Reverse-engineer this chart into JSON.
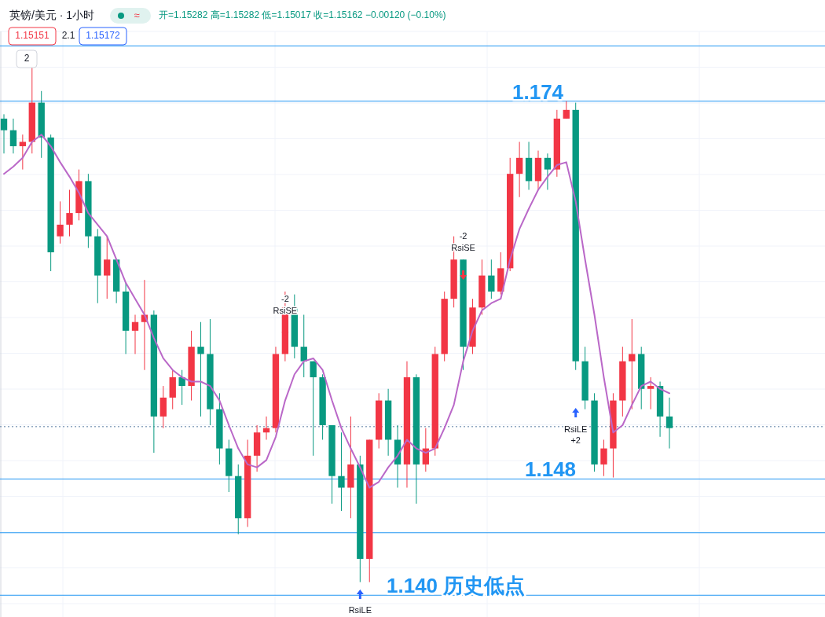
{
  "chart_data": {
    "type": "candlestick",
    "title": "英镑/美元 · 1小时",
    "subtitle": "开=1.15282 高=1.15282 低=1.15017 收=1.15162 −0.00120 (−0.10%)",
    "categories": [
      null,
      null,
      null,
      null,
      null,
      null,
      null,
      null,
      null,
      null,
      null,
      null,
      null,
      null,
      null,
      null,
      null,
      null,
      null,
      null,
      null,
      null,
      null,
      null,
      null,
      null,
      null,
      null,
      null,
      null,
      null,
      null,
      null,
      null,
      null,
      null,
      null,
      null,
      null,
      null,
      null,
      null,
      null,
      null,
      null,
      null,
      null,
      null,
      null,
      null,
      null,
      null,
      null,
      null,
      null,
      null,
      null,
      null,
      null,
      null,
      null,
      null,
      null,
      null,
      null,
      null,
      null,
      null,
      null,
      null,
      null,
      null
    ],
    "ohlc": [
      [
        1.1728,
        1.1731,
        1.1704,
        1.172
      ],
      [
        1.172,
        1.1728,
        1.1704,
        1.1709
      ],
      [
        1.1709,
        1.1717,
        1.1693,
        1.1712
      ],
      [
        1.1712,
        1.1763,
        1.1704,
        1.1739
      ],
      [
        1.1739,
        1.1747,
        1.1701,
        1.1715
      ],
      [
        1.1715,
        1.1717,
        1.1623,
        1.1636
      ],
      [
        1.1647,
        1.1671,
        1.1642,
        1.1655
      ],
      [
        1.1655,
        1.1679,
        1.1647,
        1.1663
      ],
      [
        1.1663,
        1.1693,
        1.1658,
        1.1685
      ],
      [
        1.1685,
        1.169,
        1.1639,
        1.1647
      ],
      [
        1.1647,
        1.1652,
        1.1601,
        1.162
      ],
      [
        1.162,
        1.1647,
        1.1604,
        1.1631
      ],
      [
        1.1631,
        1.1631,
        1.1601,
        1.1609
      ],
      [
        1.1609,
        1.1615,
        1.1566,
        1.1582
      ],
      [
        1.1582,
        1.1593,
        1.1566,
        1.1588
      ],
      [
        1.1588,
        1.1617,
        1.1555,
        1.1593
      ],
      [
        1.1593,
        1.1596,
        1.1498,
        1.1523
      ],
      [
        1.1523,
        1.1544,
        1.1515,
        1.1536
      ],
      [
        1.1536,
        1.1555,
        1.1528,
        1.155
      ],
      [
        1.155,
        1.1555,
        1.1531,
        1.1544
      ],
      [
        1.1544,
        1.1582,
        1.1534,
        1.1571
      ],
      [
        1.1571,
        1.1588,
        1.1523,
        1.1566
      ],
      [
        1.1566,
        1.159,
        1.1517,
        1.1528
      ],
      [
        1.1528,
        1.1539,
        1.149,
        1.1501
      ],
      [
        1.1501,
        1.1507,
        1.1471,
        1.1482
      ],
      [
        1.1482,
        1.149,
        1.1442,
        1.1453
      ],
      [
        1.1453,
        1.1507,
        1.1447,
        1.1496
      ],
      [
        1.1496,
        1.1517,
        1.1485,
        1.1512
      ],
      [
        1.1512,
        1.1523,
        1.1507,
        1.1515
      ],
      [
        1.1515,
        1.1571,
        1.1512,
        1.1566
      ],
      [
        1.1566,
        1.1609,
        1.1561,
        1.1598
      ],
      [
        1.1598,
        1.1607,
        1.1563,
        1.1571
      ],
      [
        1.1571,
        1.1593,
        1.155,
        1.1561
      ],
      [
        1.1561,
        1.1561,
        1.1496,
        1.155
      ],
      [
        1.155,
        1.1552,
        1.1507,
        1.1517
      ],
      [
        1.1517,
        1.1517,
        1.1463,
        1.1482
      ],
      [
        1.1482,
        1.1512,
        1.1458,
        1.1474
      ],
      [
        1.1474,
        1.1523,
        1.1453,
        1.149
      ],
      [
        1.149,
        1.1496,
        1.1409,
        1.1425
      ],
      [
        1.1425,
        1.1507,
        1.1409,
        1.1507
      ],
      [
        1.1507,
        1.1539,
        1.1501,
        1.1534
      ],
      [
        1.1534,
        1.1542,
        1.1496,
        1.1507
      ],
      [
        1.1507,
        1.1517,
        1.1474,
        1.149
      ],
      [
        1.149,
        1.1561,
        1.1474,
        1.155
      ],
      [
        1.155,
        1.1552,
        1.1463,
        1.149
      ],
      [
        1.149,
        1.1515,
        1.1485,
        1.1501
      ],
      [
        1.1501,
        1.1571,
        1.1496,
        1.1566
      ],
      [
        1.1566,
        1.1609,
        1.1561,
        1.1604
      ],
      [
        1.1604,
        1.1647,
        1.1598,
        1.1631
      ],
      [
        1.1631,
        1.1631,
        1.1555,
        1.1571
      ],
      [
        1.1571,
        1.1604,
        1.1566,
        1.1598
      ],
      [
        1.1598,
        1.1631,
        1.1593,
        1.162
      ],
      [
        1.162,
        1.1631,
        1.1604,
        1.1609
      ],
      [
        1.1609,
        1.1636,
        1.1607,
        1.1625
      ],
      [
        1.1625,
        1.1701,
        1.1623,
        1.169
      ],
      [
        1.169,
        1.1712,
        1.1674,
        1.1701
      ],
      [
        1.1701,
        1.1712,
        1.1679,
        1.1685
      ],
      [
        1.1685,
        1.1706,
        1.1679,
        1.1701
      ],
      [
        1.1701,
        1.1704,
        1.1679,
        1.1693
      ],
      [
        1.1693,
        1.1734,
        1.1688,
        1.1728
      ],
      [
        1.1728,
        1.174,
        1.1728,
        1.1734
      ],
      [
        1.1734,
        1.1739,
        1.1555,
        1.1561
      ],
      [
        1.1561,
        1.1571,
        1.1528,
        1.1534
      ],
      [
        1.1534,
        1.1539,
        1.1485,
        1.149
      ],
      [
        1.149,
        1.1507,
        1.1482,
        1.1501
      ],
      [
        1.1501,
        1.1539,
        1.1481,
        1.1534
      ],
      [
        1.1534,
        1.1571,
        1.1523,
        1.1561
      ],
      [
        1.1561,
        1.159,
        1.1528,
        1.1566
      ],
      [
        1.1566,
        1.1571,
        1.1528,
        1.1542
      ],
      [
        1.1542,
        1.155,
        1.1528,
        1.1544
      ],
      [
        1.1544,
        1.1547,
        1.1509,
        1.1523
      ],
      [
        1.1523,
        1.1536,
        1.1501,
        1.1515
      ]
    ],
    "series": [
      {
        "type": "line",
        "color": "#ba68c8",
        "values": [
          1.169,
          1.1695,
          1.1701,
          1.1712,
          1.1717,
          1.1709,
          1.1698,
          1.1688,
          1.1677,
          1.1663,
          1.1655,
          1.1647,
          1.1631,
          1.1615,
          1.1604,
          1.1593,
          1.1577,
          1.1563,
          1.1555,
          1.155,
          1.1547,
          1.1547,
          1.1544,
          1.1534,
          1.1517,
          1.1501,
          1.149,
          1.1488,
          1.1493,
          1.1509,
          1.1534,
          1.1552,
          1.1561,
          1.1563,
          1.1555,
          1.1534,
          1.1515,
          1.1501,
          1.1488,
          1.1474,
          1.1478,
          1.1488,
          1.1496,
          1.1507,
          1.1501,
          1.1498,
          1.1501,
          1.1515,
          1.1531,
          1.1561,
          1.1582,
          1.1596,
          1.1601,
          1.1604,
          1.1631,
          1.1652,
          1.1666,
          1.1679,
          1.1688,
          1.1696,
          1.1698,
          1.1671,
          1.1631,
          1.1593,
          1.155,
          1.1512,
          1.1517,
          1.1531,
          1.1544,
          1.1547,
          1.1542,
          1.1539
        ]
      }
    ],
    "ylim": [
      1.1385,
      1.1788
    ],
    "grid": true,
    "ref_lines": [
      {
        "axis": "y",
        "value": 1.1778,
        "color": "#2196f3"
      },
      {
        "axis": "y",
        "value": 1.174,
        "label": "1.174",
        "color": "#2196f3"
      },
      {
        "axis": "y",
        "value": 1.148,
        "label": "1.148",
        "color": "#2196f3"
      },
      {
        "axis": "y",
        "value": 1.1443,
        "color": "#2196f3"
      },
      {
        "axis": "y",
        "value": 1.14,
        "label": "1.140 历史低点",
        "color": "#2196f3"
      },
      {
        "axis": "y",
        "value": 1.1516,
        "color": "#5d7fa3",
        "line_style": "dotted"
      }
    ],
    "annotations": [
      "-2",
      "RsiSE",
      "-2",
      "RsiSE",
      "RsiLE",
      "RsiLE",
      "+2",
      "1.15151",
      "2.1",
      "1.15172",
      "2",
      "≈"
    ]
  }
}
